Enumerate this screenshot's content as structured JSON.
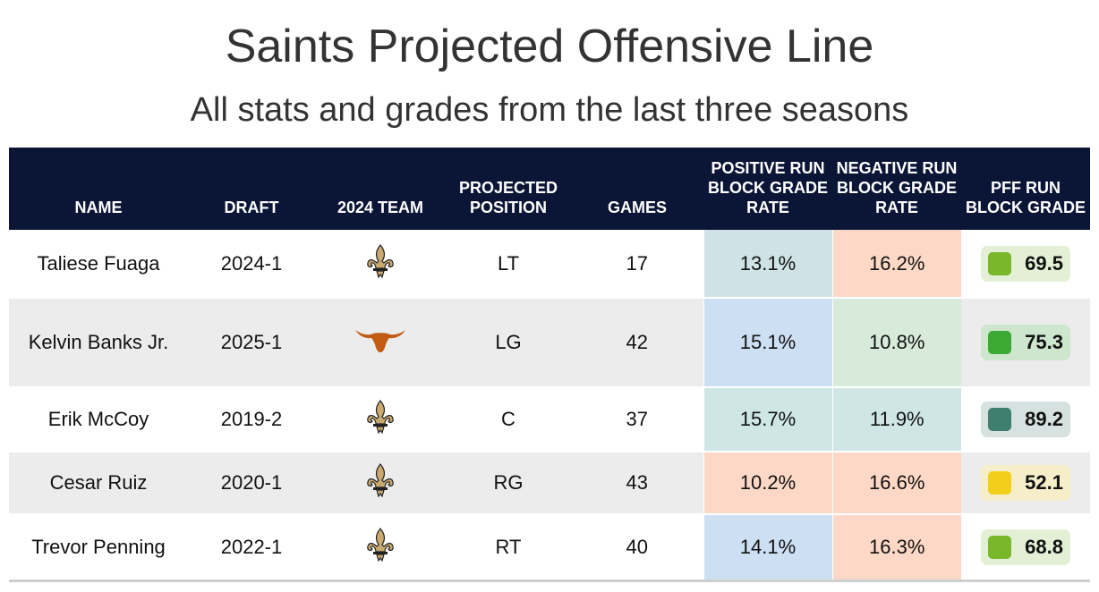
{
  "header": {
    "title": "Saints Projected Offensive Line",
    "subtitle": "All stats and grades from the last three seasons"
  },
  "columns": [
    "NAME",
    "DRAFT",
    "2024 TEAM",
    "PROJECTED POSITION",
    "GAMES",
    "POSITIVE RUN BLOCK GRADE RATE",
    "NEGATIVE RUN BLOCK GRADE RATE",
    "PFF RUN BLOCK GRADE"
  ],
  "rows": [
    {
      "name": "Taliese Fuaga",
      "draft": "2024-1",
      "team_icon": "saints-fleur-de-lis-icon",
      "position": "LT",
      "games": "17",
      "pos_rate": "13.1%",
      "pos_color": "#cfe3e6",
      "neg_rate": "16.2%",
      "neg_color": "#fdd8c6",
      "grade": "69.5",
      "grade_bg": "#e4f0d6",
      "grade_dot": "#78b82a"
    },
    {
      "name": "Kelvin Banks Jr.",
      "draft": "2025-1",
      "team_icon": "texas-longhorn-icon",
      "position": "LG",
      "games": "42",
      "pos_rate": "15.1%",
      "pos_color": "#cddff2",
      "neg_rate": "10.8%",
      "neg_color": "#d8ead9",
      "grade": "75.3",
      "grade_bg": "#cde6cd",
      "grade_dot": "#3aaa35"
    },
    {
      "name": "Erik McCoy",
      "draft": "2019-2",
      "team_icon": "saints-fleur-de-lis-icon",
      "position": "C",
      "games": "37",
      "pos_rate": "15.7%",
      "pos_color": "#cfe6e6",
      "neg_rate": "11.9%",
      "neg_color": "#d0e6e6",
      "grade": "89.2",
      "grade_bg": "#d5e2e0",
      "grade_dot": "#3f7f6f"
    },
    {
      "name": "Cesar Ruiz",
      "draft": "2020-1",
      "team_icon": "saints-fleur-de-lis-icon",
      "position": "RG",
      "games": "43",
      "pos_rate": "10.2%",
      "pos_color": "#fdd8c6",
      "neg_rate": "16.6%",
      "neg_color": "#fdd8c6",
      "grade": "52.1",
      "grade_bg": "#f6eec9",
      "grade_dot": "#f2cf1a"
    },
    {
      "name": "Trevor Penning",
      "draft": "2022-1",
      "team_icon": "saints-fleur-de-lis-icon",
      "position": "RT",
      "games": "40",
      "pos_rate": "14.1%",
      "pos_color": "#cddff2",
      "neg_rate": "16.3%",
      "neg_color": "#fdd8c6",
      "grade": "68.8",
      "grade_bg": "#e4f0d6",
      "grade_dot": "#78b82a"
    }
  ],
  "colors": {
    "header_bg": "#0b1536",
    "saints_gold": "#c9a96e",
    "texas_orange": "#c25b14"
  }
}
